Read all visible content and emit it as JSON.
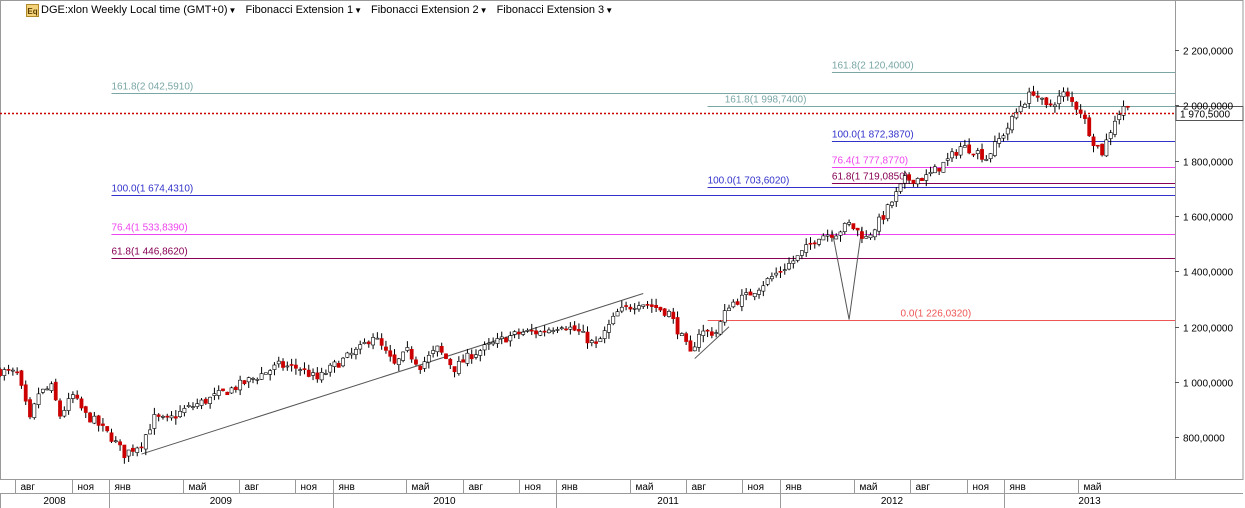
{
  "header": {
    "symbol_badge": "Eq",
    "title": "DGE:xlon Weekly Local time (GMT+0)",
    "menus": [
      "Fibonacci Extension 1",
      "Fibonacci Extension 2",
      "Fibonacci Extension 3"
    ]
  },
  "colors": {
    "up": "#ffffff",
    "down": "#cc0000",
    "wick": "#000000",
    "grid": "#d8d8d8",
    "level_161": "#7aa6a6",
    "level_100": "#3333cc",
    "level_764": "#ee44ee",
    "level_618": "#880055",
    "level_0": "#ee5555",
    "current_price": "#cc0000"
  },
  "chart_data": {
    "type": "candlestick",
    "ylim": [
      650000,
      2380000
    ],
    "y_ticks": [
      {
        "value": 800000,
        "label": "800,0000"
      },
      {
        "value": 1000000,
        "label": "1 000,0000"
      },
      {
        "value": 1200000,
        "label": "1 200,0000"
      },
      {
        "value": 1400000,
        "label": "1 400,0000"
      },
      {
        "value": 1600000,
        "label": "1 600,0000"
      },
      {
        "value": 1800000,
        "label": "1 800,0000"
      },
      {
        "value": 2000000,
        "label": "2 000,0000"
      },
      {
        "value": 2200000,
        "label": "2 200,0000"
      }
    ],
    "x_start": "2008-07-07",
    "x_end": "2013-10-07",
    "month_ticks": [
      {
        "date": "2008-08-01",
        "label": "авг"
      },
      {
        "date": "2008-11-01",
        "label": "ноя"
      },
      {
        "date": "2009-01-01",
        "label": "янв"
      },
      {
        "date": "2009-05-01",
        "label": "май"
      },
      {
        "date": "2009-08-01",
        "label": "авг"
      },
      {
        "date": "2009-11-01",
        "label": "ноя"
      },
      {
        "date": "2010-01-01",
        "label": "янв"
      },
      {
        "date": "2010-05-01",
        "label": "май"
      },
      {
        "date": "2010-08-01",
        "label": "авг"
      },
      {
        "date": "2010-11-01",
        "label": "ноя"
      },
      {
        "date": "2011-01-01",
        "label": "янв"
      },
      {
        "date": "2011-05-01",
        "label": "май"
      },
      {
        "date": "2011-08-01",
        "label": "авг"
      },
      {
        "date": "2011-11-01",
        "label": "ноя"
      },
      {
        "date": "2012-01-01",
        "label": "янв"
      },
      {
        "date": "2012-05-01",
        "label": "май"
      },
      {
        "date": "2012-08-01",
        "label": "авг"
      },
      {
        "date": "2012-11-01",
        "label": "ноя"
      },
      {
        "date": "2013-01-01",
        "label": "янв"
      },
      {
        "date": "2013-05-01",
        "label": "май"
      }
    ],
    "year_ticks": [
      {
        "start": "2008-07-07",
        "end": "2009-01-01",
        "label": "2008"
      },
      {
        "start": "2009-01-01",
        "end": "2010-01-01",
        "label": "2009"
      },
      {
        "start": "2010-01-01",
        "end": "2011-01-01",
        "label": "2010"
      },
      {
        "start": "2011-01-01",
        "end": "2012-01-01",
        "label": "2011"
      },
      {
        "start": "2012-01-01",
        "end": "2013-01-01",
        "label": "2012"
      },
      {
        "start": "2013-01-01",
        "end": "2013-10-07",
        "label": "2013"
      }
    ],
    "anchors": [
      [
        "2008-07-07",
        1040000
      ],
      [
        "2008-08-04",
        1030000
      ],
      [
        "2008-08-25",
        860000
      ],
      [
        "2008-09-08",
        960000
      ],
      [
        "2008-09-29",
        980000
      ],
      [
        "2008-10-13",
        880000
      ],
      [
        "2008-11-03",
        950000
      ],
      [
        "2008-11-24",
        880000
      ],
      [
        "2008-12-08",
        860000
      ],
      [
        "2009-01-05",
        800000
      ],
      [
        "2009-01-26",
        740000
      ],
      [
        "2009-02-23",
        780000
      ],
      [
        "2009-03-16",
        870000
      ],
      [
        "2009-04-06",
        860000
      ],
      [
        "2009-05-04",
        900000
      ],
      [
        "2009-06-15",
        940000
      ],
      [
        "2009-08-03",
        990000
      ],
      [
        "2009-10-05",
        1060000
      ],
      [
        "2009-11-09",
        1050000
      ],
      [
        "2009-12-07",
        1010000
      ],
      [
        "2010-01-04",
        1060000
      ],
      [
        "2010-02-15",
        1120000
      ],
      [
        "2010-03-08",
        1170000
      ],
      [
        "2010-04-12",
        1060000
      ],
      [
        "2010-05-03",
        1110000
      ],
      [
        "2010-05-24",
        1060000
      ],
      [
        "2010-06-21",
        1120000
      ],
      [
        "2010-07-19",
        1050000
      ],
      [
        "2010-08-16",
        1100000
      ],
      [
        "2010-09-13",
        1130000
      ],
      [
        "2010-10-11",
        1160000
      ],
      [
        "2010-11-08",
        1180000
      ],
      [
        "2010-12-06",
        1180000
      ],
      [
        "2011-01-10",
        1210000
      ],
      [
        "2011-02-07",
        1180000
      ],
      [
        "2011-03-07",
        1130000
      ],
      [
        "2011-04-11",
        1250000
      ],
      [
        "2011-05-16",
        1290000
      ],
      [
        "2011-06-13",
        1270000
      ],
      [
        "2011-07-04",
        1250000
      ],
      [
        "2011-08-08",
        1100000
      ],
      [
        "2011-08-22",
        1180000
      ],
      [
        "2011-09-19",
        1180000
      ],
      [
        "2011-10-10",
        1280000
      ],
      [
        "2011-11-07",
        1310000
      ],
      [
        "2011-12-19",
        1380000
      ],
      [
        "2012-01-30",
        1450000
      ],
      [
        "2012-03-05",
        1530000
      ],
      [
        "2012-04-02",
        1540000
      ],
      [
        "2012-04-23",
        1570000
      ],
      [
        "2012-05-21",
        1520000
      ],
      [
        "2012-06-18",
        1600000
      ],
      [
        "2012-07-23",
        1730000
      ],
      [
        "2012-08-27",
        1740000
      ],
      [
        "2012-10-01",
        1800000
      ],
      [
        "2012-10-22",
        1850000
      ],
      [
        "2012-11-12",
        1840000
      ],
      [
        "2012-12-03",
        1810000
      ],
      [
        "2013-01-07",
        1920000
      ],
      [
        "2013-01-28",
        2000000
      ],
      [
        "2013-02-18",
        2050000
      ],
      [
        "2013-03-11",
        1990000
      ],
      [
        "2013-04-08",
        2040000
      ],
      [
        "2013-05-06",
        1980000
      ],
      [
        "2013-05-27",
        1870000
      ],
      [
        "2013-06-10",
        1830000
      ],
      [
        "2013-07-01",
        1950000
      ],
      [
        "2013-07-22",
        2010000
      ]
    ],
    "current_price": {
      "value": 1970500,
      "label": "1 970,5000"
    },
    "trendlines": [
      {
        "from": [
          "2009-02-23",
          740000
        ],
        "to": [
          "2011-05-23",
          1320000
        ]
      },
      {
        "from": [
          "2011-08-15",
          1085000
        ],
        "to": [
          "2011-10-10",
          1200000
        ]
      },
      {
        "from": [
          "2012-03-26",
          1550000
        ],
        "to": [
          "2012-04-23",
          1226000
        ]
      },
      {
        "from": [
          "2012-04-23",
          1226000
        ],
        "to": [
          "2012-05-14",
          1560000
        ]
      }
    ],
    "fib_levels": [
      {
        "value": 2120400,
        "label": "161.8(2 120,4000)",
        "color": "level_161",
        "from": "2012-03-26",
        "to": "2013-10-07",
        "label_date": "2012-03-26"
      },
      {
        "value": 2042591,
        "label": "161.8(2 042,5910)",
        "color": "level_161",
        "from": "2009-01-05",
        "to": "2013-10-07",
        "label_date": "2009-01-05"
      },
      {
        "value": 1998740,
        "label": "161.8(1 998,7400)",
        "color": "level_161",
        "from": "2011-09-05",
        "to": "2013-10-07",
        "label_date": "2011-10-03"
      },
      {
        "value": 1872387,
        "label": "100.0(1 872,3870)",
        "color": "level_100",
        "from": "2012-03-26",
        "to": "2013-10-07",
        "label_date": "2012-03-26"
      },
      {
        "value": 1777877,
        "label": "76.4(1 777,8770)",
        "color": "level_764",
        "from": "2012-03-26",
        "to": "2013-10-07",
        "label_date": "2012-03-26"
      },
      {
        "value": 1719085,
        "label": "61.8(1 719,0850)",
        "color": "level_618",
        "from": "2012-03-26",
        "to": "2013-10-07",
        "label_date": "2012-03-26"
      },
      {
        "value": 1703602,
        "label": "100.0(1 703,6020)",
        "color": "level_100",
        "from": "2011-09-05",
        "to": "2013-10-07",
        "label_date": "2011-09-05"
      },
      {
        "value": 1674431,
        "label": "100.0(1 674,4310)",
        "color": "level_100",
        "from": "2009-01-05",
        "to": "2013-10-07",
        "label_date": "2009-01-05"
      },
      {
        "value": 1533839,
        "label": "76.4(1 533,8390)",
        "color": "level_764",
        "from": "2009-01-05",
        "to": "2013-10-07",
        "label_date": "2009-01-05"
      },
      {
        "value": 1446862,
        "label": "61.8(1 446,8620)",
        "color": "level_618",
        "from": "2009-01-05",
        "to": "2013-10-07",
        "label_date": "2009-01-05"
      },
      {
        "value": 1226032,
        "label": "0.0(1 226,0320)",
        "color": "level_0",
        "from": "2011-09-05",
        "to": "2013-10-07",
        "label_date": "2012-07-16"
      }
    ]
  }
}
